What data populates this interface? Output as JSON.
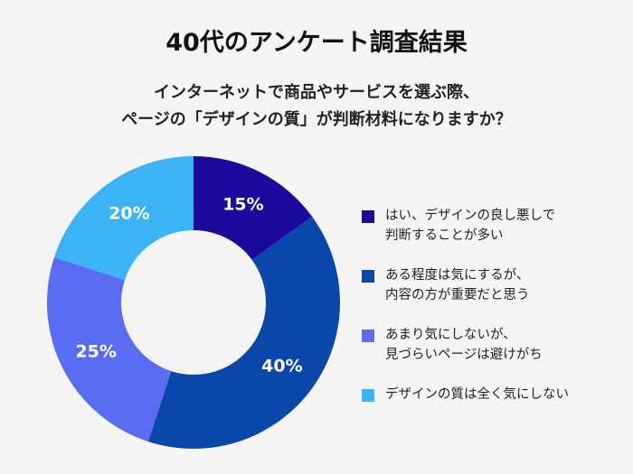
{
  "chart_data": {
    "type": "donut",
    "title": "40代のアンケート調査結果",
    "subtitle": [
      "インターネットで商品やサービスを選ぶ際、",
      "ページの「デザインの質」が判断材料になりますか？"
    ],
    "categories": [
      "はい、デザインの良し悪しで\n判断することが多い",
      "ある程度は気にするが、\n内容の方が重要だと思う",
      "あまり気にしないが、\n見づらいページは避けがち",
      "デザインの質は全く気にしない"
    ],
    "values": [
      15,
      40,
      25,
      20
    ],
    "value_labels": [
      "15%",
      "40%",
      "25%",
      "20%"
    ],
    "colors": [
      "#1c0a9e",
      "#0a47aa",
      "#5a6cf2",
      "#3bb3f5"
    ],
    "legend": "right"
  }
}
